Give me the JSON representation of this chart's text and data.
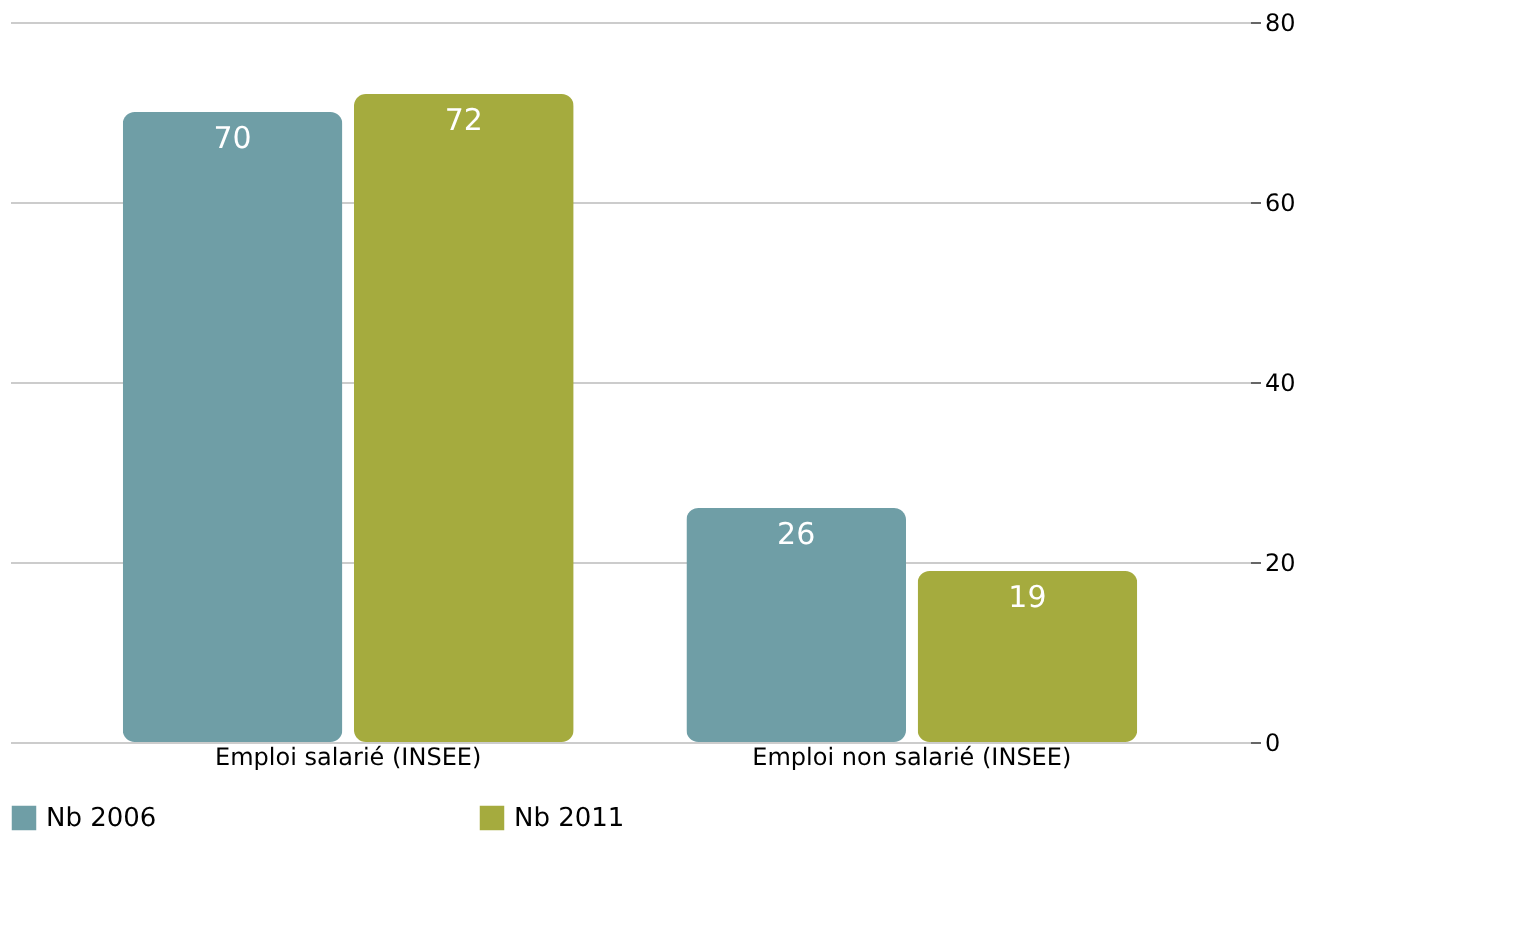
{
  "chart_data": {
    "type": "bar",
    "categories": [
      "Emploi salarié (INSEE)",
      "Emploi non salarié (INSEE)"
    ],
    "series": [
      {
        "name": "Nb 2006",
        "color": "#6f9ea6",
        "values": [
          70,
          26
        ]
      },
      {
        "name": "Nb 2011",
        "color": "#a5ab3e",
        "values": [
          72,
          19
        ]
      }
    ],
    "ylim": [
      0,
      80
    ],
    "yticks": [
      0,
      20,
      40,
      60,
      80
    ],
    "grid": "y",
    "legend": "bottom",
    "data_labels": true
  }
}
